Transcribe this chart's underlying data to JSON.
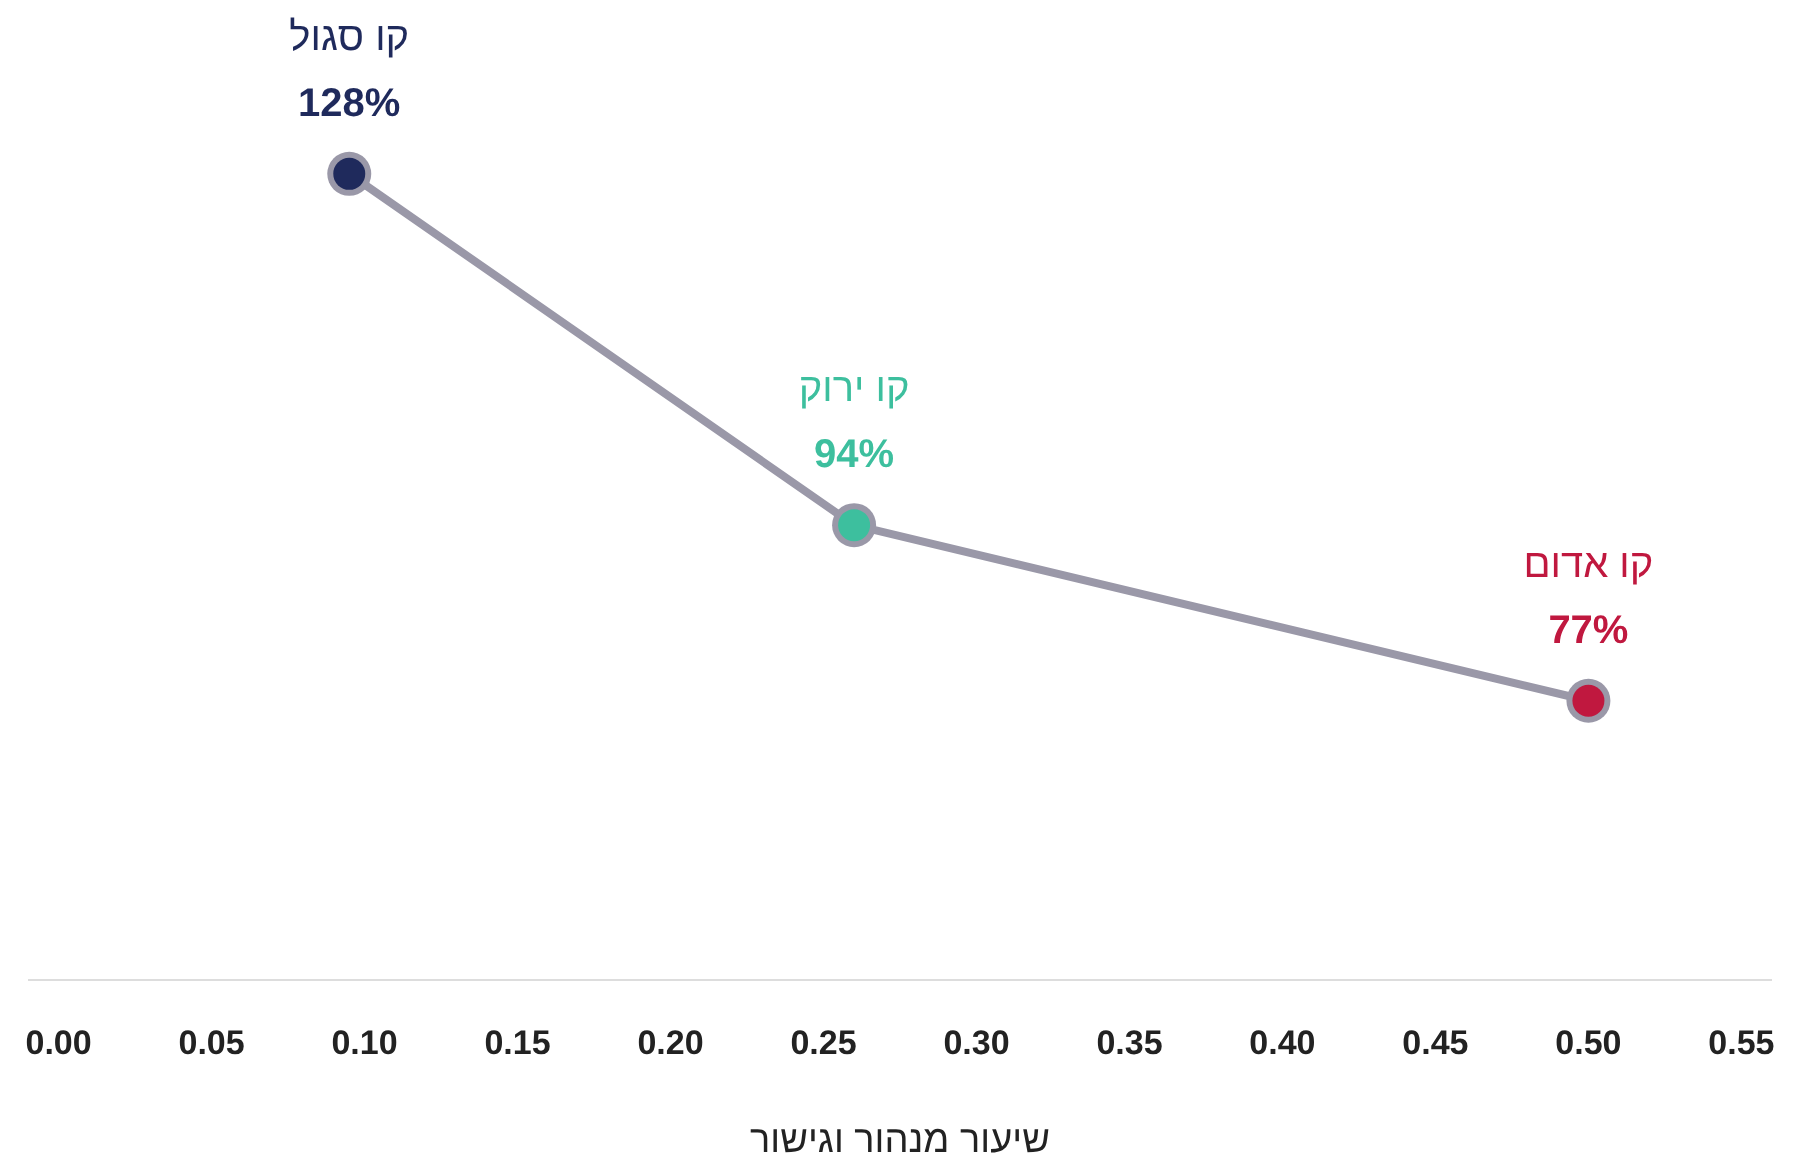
{
  "chart_data": {
    "type": "line",
    "xlabel": "שיעור מנהור וגישור",
    "x": [
      0.095,
      0.26,
      0.5
    ],
    "values": [
      128,
      94,
      77
    ],
    "color": "#9a98a8",
    "colors": [
      "#1f2a5c",
      "#3dbf9e",
      "#c0183f"
    ],
    "value_labels": [
      "128%",
      "94%",
      "77%"
    ],
    "annotations": [
      {
        "text": "קו סגול",
        "x": 0.095,
        "y": 128
      },
      {
        "text": "קו ירוק",
        "x": 0.26,
        "y": 94
      },
      {
        "text": "קו אדום",
        "x": 0.5,
        "y": 77
      }
    ],
    "xlim": [
      -0.01,
      0.56
    ],
    "xticks": [
      {
        "value": 0,
        "label": "0.00"
      },
      0.05,
      {
        "value": 0.1,
        "label": "0.10"
      },
      0.15,
      {
        "value": 0.2,
        "label": "0.20"
      },
      0.25,
      {
        "value": 0.3,
        "label": "0.30"
      },
      0.35,
      {
        "value": 0.4,
        "label": "0.40"
      },
      0.45,
      {
        "value": 0.5,
        "label": "0.50"
      },
      0.55
    ],
    "tick_labels": "x",
    "grid": false,
    "marker": "circle"
  }
}
